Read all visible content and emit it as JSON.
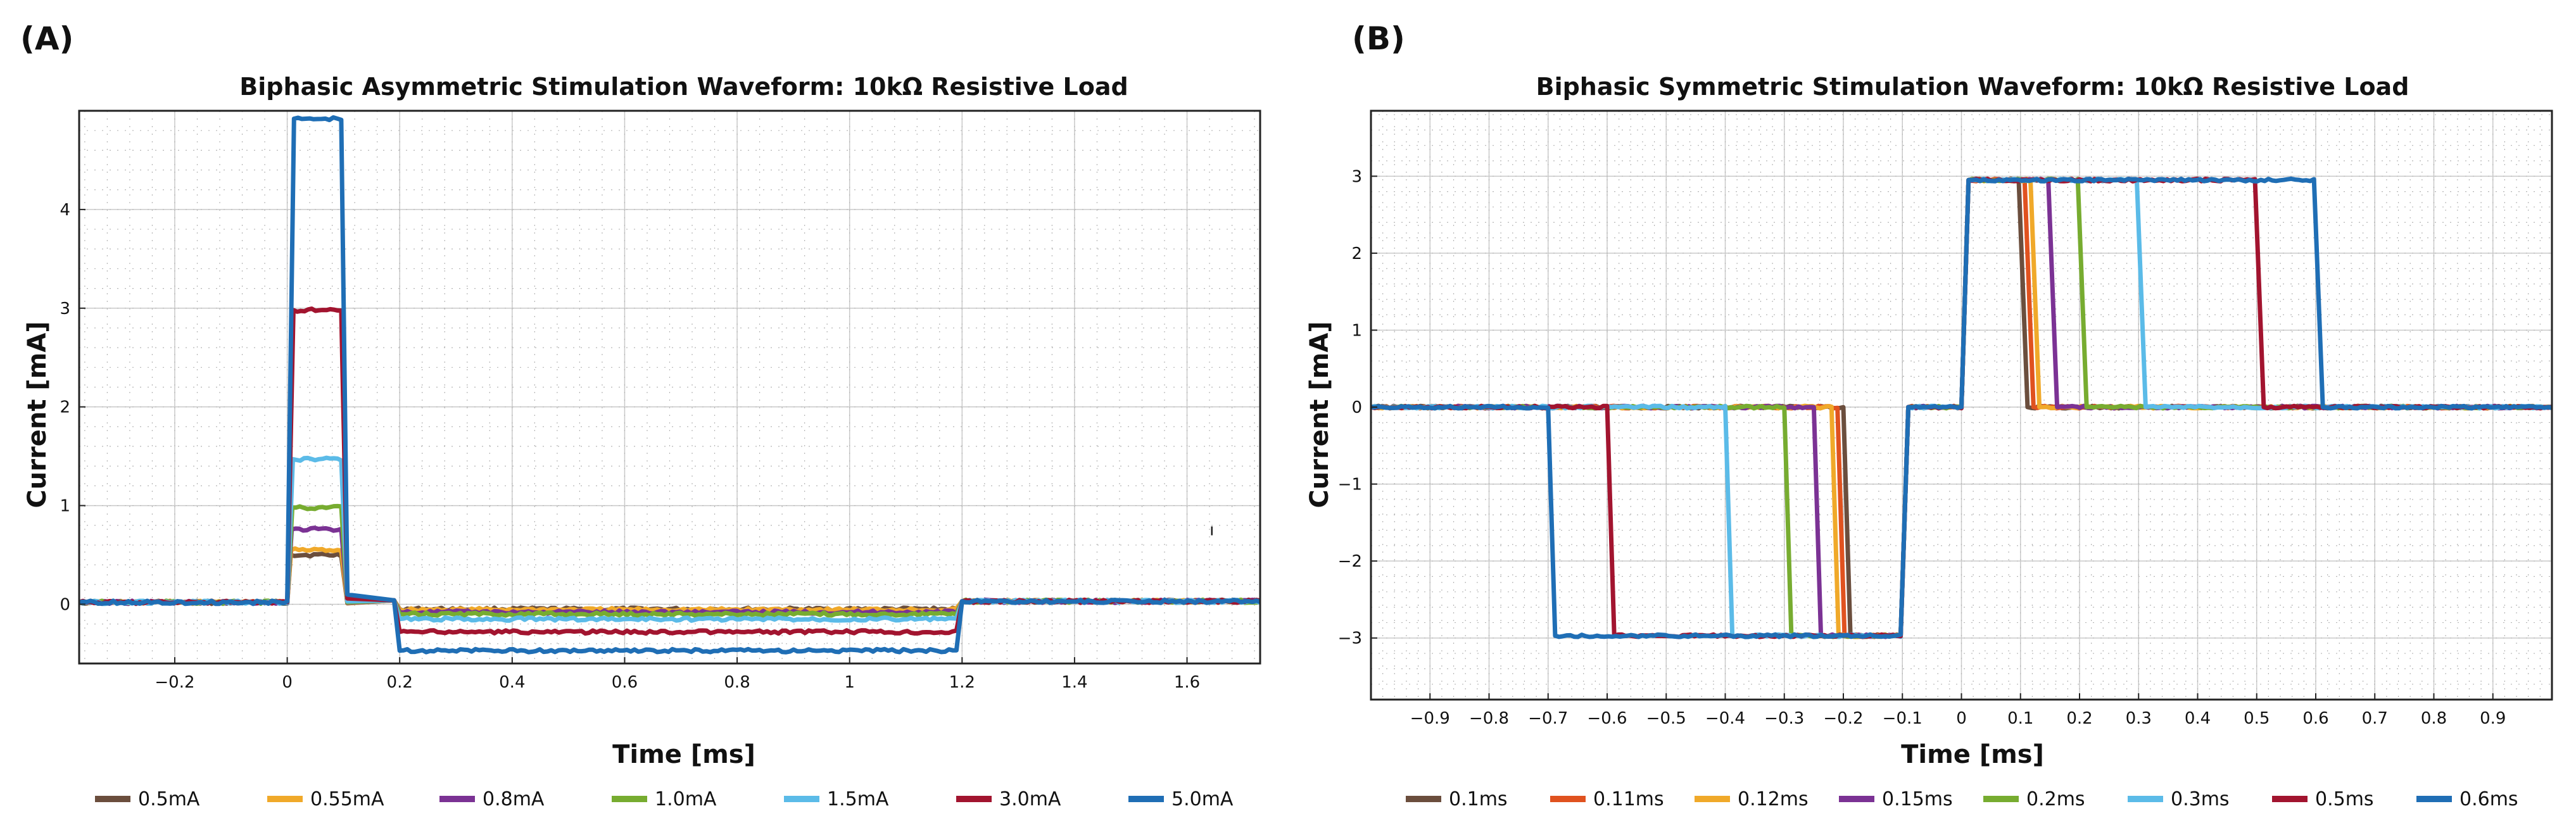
{
  "panels": [
    {
      "label": "(A)",
      "chart_data": {
        "type": "line",
        "title": "Biphasic Asymmetric Stimulation Waveform: 10kΩ Resistive Load",
        "xlabel": "Time [ms]",
        "ylabel": "Current [mA]",
        "xlim": [
          -0.37,
          1.73
        ],
        "ylim": [
          -0.6,
          5.0
        ],
        "grid": true,
        "legend": "bottom",
        "xticks": [
          -0.2,
          0,
          0.2,
          0.4,
          0.6,
          0.8,
          1,
          1.2,
          1.4,
          1.6
        ],
        "xtick_labels": [
          "−0.2",
          "0",
          "0.2",
          "0.4",
          "0.6",
          "0.8",
          "1",
          "1.2",
          "1.4",
          "1.6"
        ],
        "yticks": [
          0,
          1,
          2,
          3,
          4
        ],
        "ytick_labels": [
          "0",
          "1",
          "2",
          "3",
          "4"
        ],
        "series": [
          {
            "name": "0.5mA",
            "color": "#6b4e3d",
            "amplitude": 0.5,
            "anodic": -0.05,
            "x": [
              -0.37,
              0,
              0.1,
              0.2,
              1.2,
              1.73
            ],
            "y_desc": "pulse"
          },
          {
            "name": "0.55mA",
            "color": "#f0a92a",
            "amplitude": 0.55,
            "anodic": -0.055
          },
          {
            "name": "0.8mA",
            "color": "#7b3294",
            "amplitude": 0.76,
            "anodic": -0.08
          },
          {
            "name": "1.0mA",
            "color": "#77ac30",
            "amplitude": 0.98,
            "anodic": -0.1
          },
          {
            "name": "1.5mA",
            "color": "#5bbbe8",
            "amplitude": 1.47,
            "anodic": -0.15
          },
          {
            "name": "3.0mA",
            "color": "#a2142f",
            "amplitude": 2.98,
            "anodic": -0.28
          },
          {
            "name": "5.0mA",
            "color": "#1f6eb5",
            "amplitude": 4.92,
            "anodic": -0.47
          }
        ],
        "annotation": "ı"
      }
    },
    {
      "label": "(B)",
      "chart_data": {
        "type": "line",
        "title": "Biphasic Symmetric Stimulation Waveform: 10kΩ Resistive Load",
        "xlabel": "Time [ms]",
        "ylabel": "Current [mA]",
        "xlim": [
          -1.0,
          1.0
        ],
        "ylim": [
          -3.8,
          3.85
        ],
        "grid": true,
        "legend": "bottom",
        "xticks": [
          -0.9,
          -0.8,
          -0.7,
          -0.6,
          -0.5,
          -0.4,
          -0.3,
          -0.2,
          -0.1,
          0,
          0.1,
          0.2,
          0.3,
          0.4,
          0.5,
          0.6,
          0.7,
          0.8,
          0.9
        ],
        "xtick_labels": [
          "−0.9",
          "−0.8",
          "−0.7",
          "−0.6",
          "−0.5",
          "−0.4",
          "−0.3",
          "−0.2",
          "−0.1",
          "0",
          "0.1",
          "0.2",
          "0.3",
          "0.4",
          "0.5",
          "0.6",
          "0.7",
          "0.8",
          "0.9"
        ],
        "yticks": [
          -3,
          -2,
          -1,
          0,
          1,
          2,
          3
        ],
        "ytick_labels": [
          "−3",
          "−2",
          "−1",
          "0",
          "1",
          "2",
          "3"
        ],
        "series": [
          {
            "name": "0.1ms",
            "color": "#6b4e3d",
            "pulse_width": 0.1,
            "cathodic": -2.97,
            "anodic": 2.95
          },
          {
            "name": "0.11ms",
            "color": "#e0521f",
            "pulse_width": 0.11,
            "cathodic": -2.97,
            "anodic": 2.95
          },
          {
            "name": "0.12ms",
            "color": "#f0a92a",
            "pulse_width": 0.12,
            "cathodic": -2.97,
            "anodic": 2.95
          },
          {
            "name": "0.15ms",
            "color": "#7b3294",
            "pulse_width": 0.15,
            "cathodic": -2.97,
            "anodic": 2.95
          },
          {
            "name": "0.2ms",
            "color": "#77ac30",
            "pulse_width": 0.2,
            "cathodic": -2.97,
            "anodic": 2.95
          },
          {
            "name": "0.3ms",
            "color": "#5bbbe8",
            "pulse_width": 0.3,
            "cathodic": -2.97,
            "anodic": 2.95
          },
          {
            "name": "0.5ms",
            "color": "#a2142f",
            "pulse_width": 0.5,
            "cathodic": -2.97,
            "anodic": 2.95
          },
          {
            "name": "0.6ms",
            "color": "#1f6eb5",
            "pulse_width": 0.6,
            "cathodic": -2.97,
            "anodic": 2.95
          }
        ]
      }
    }
  ]
}
